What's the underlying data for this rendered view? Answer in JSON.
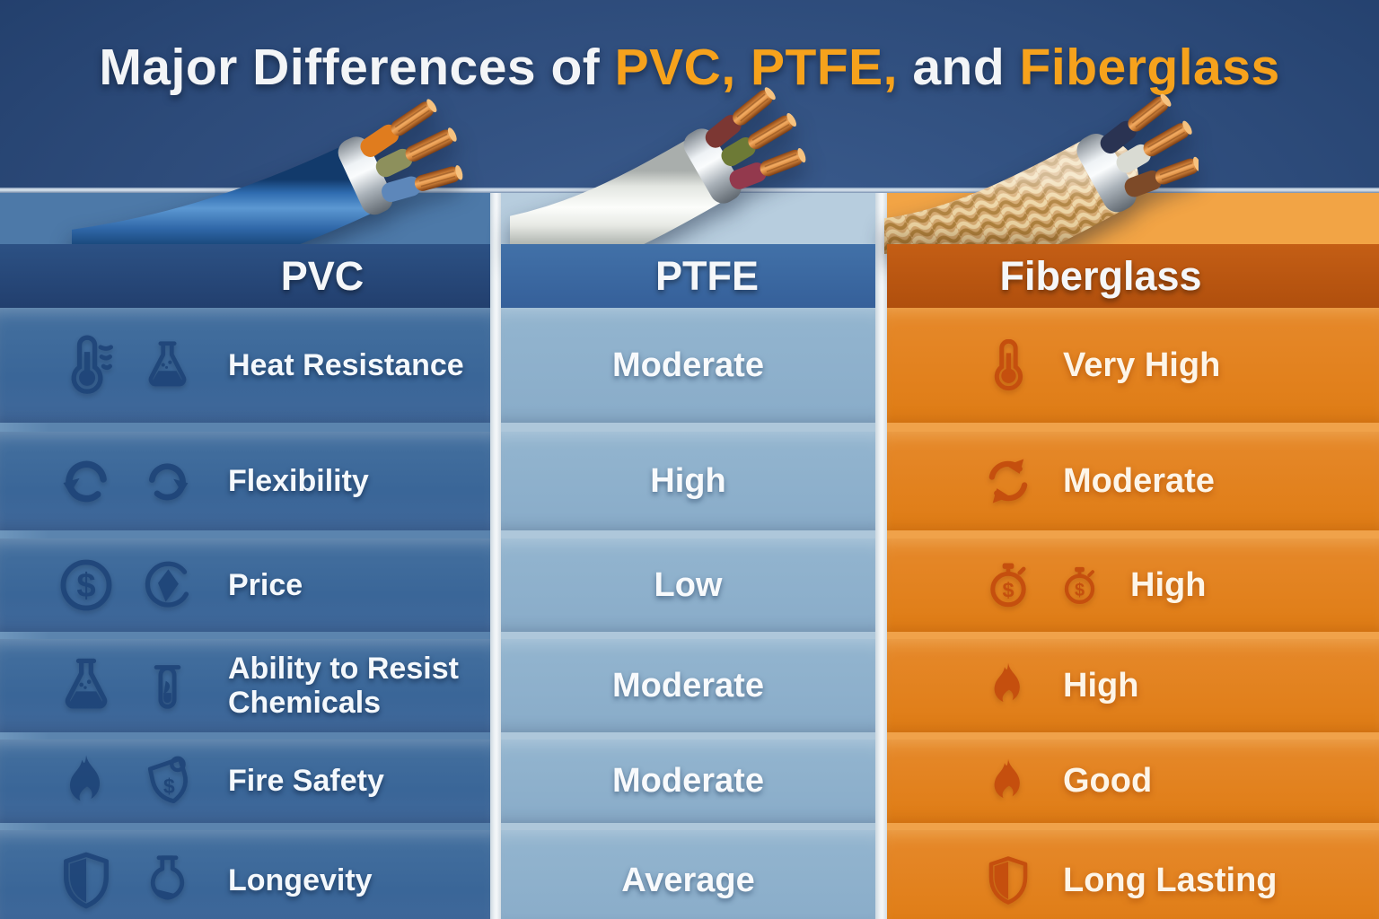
{
  "title": {
    "part1": "Major Differences of",
    "part2": "PVC, PTFE,",
    "part3": "and",
    "part4": "Fiberglass"
  },
  "columns": [
    {
      "id": "pvc",
      "header": "PVC",
      "cable": "blue-pvc-cable"
    },
    {
      "id": "ptfe",
      "header": "PTFE",
      "cable": "white-ptfe-cable"
    },
    {
      "id": "fiberglass",
      "header": "Fiberglass",
      "cable": "tan-braided-fiberglass-cable"
    }
  ],
  "rows": [
    {
      "attribute": "Heat Resistance",
      "pvc_icons": [
        "thermometer-heat-icon",
        "flask-icon"
      ],
      "ptfe_value": "Moderate",
      "fiberglass_icons": [
        "thermometer-icon"
      ],
      "fiberglass_value": "Very High"
    },
    {
      "attribute": "Flexibility",
      "pvc_icons": [
        "rotate-ccw-icon",
        "rotate-cw-icon"
      ],
      "ptfe_value": "High",
      "fiberglass_icons": [
        "sync-arrows-icon"
      ],
      "fiberglass_value": "Moderate"
    },
    {
      "attribute": "Price",
      "pvc_icons": [
        "dollar-coin-icon",
        "diamond-circle-icon"
      ],
      "ptfe_value": "Low",
      "fiberglass_icons": [
        "stopwatch-dollar-icon",
        "stopwatch-dollar-icon"
      ],
      "fiberglass_value": "High"
    },
    {
      "attribute": "Ability to Resist Chemicals",
      "pvc_icons": [
        "flask-icon",
        "test-tube-icon"
      ],
      "ptfe_value": "Moderate",
      "fiberglass_icons": [
        "flame-icon"
      ],
      "fiberglass_value": "High"
    },
    {
      "attribute": "Fire Safety",
      "pvc_icons": [
        "flame-icon",
        "shield-dollar-icon"
      ],
      "ptfe_value": "Moderate",
      "fiberglass_icons": [
        "flame-icon"
      ],
      "fiberglass_value": "Good"
    },
    {
      "attribute": "Longevity",
      "pvc_icons": [
        "shield-icon",
        "round-flask-icon"
      ],
      "ptfe_value": "Average",
      "fiberglass_icons": [
        "shield-icon"
      ],
      "fiberglass_value": "Long Lasting"
    }
  ],
  "colors": {
    "accent_orange": "#f6a21c",
    "title_white": "#f3f5f7",
    "top_background": "#2d4b7a",
    "pvc_header": "#25477a",
    "pvc_row": "#3d6a9e",
    "ptfe_header": "#3a67a2",
    "ptfe_row": "#8eb1cc",
    "fiberglass_header": "#bf5a12",
    "fiberglass_row": "#e2811c",
    "gutter": "#eef2f5"
  }
}
